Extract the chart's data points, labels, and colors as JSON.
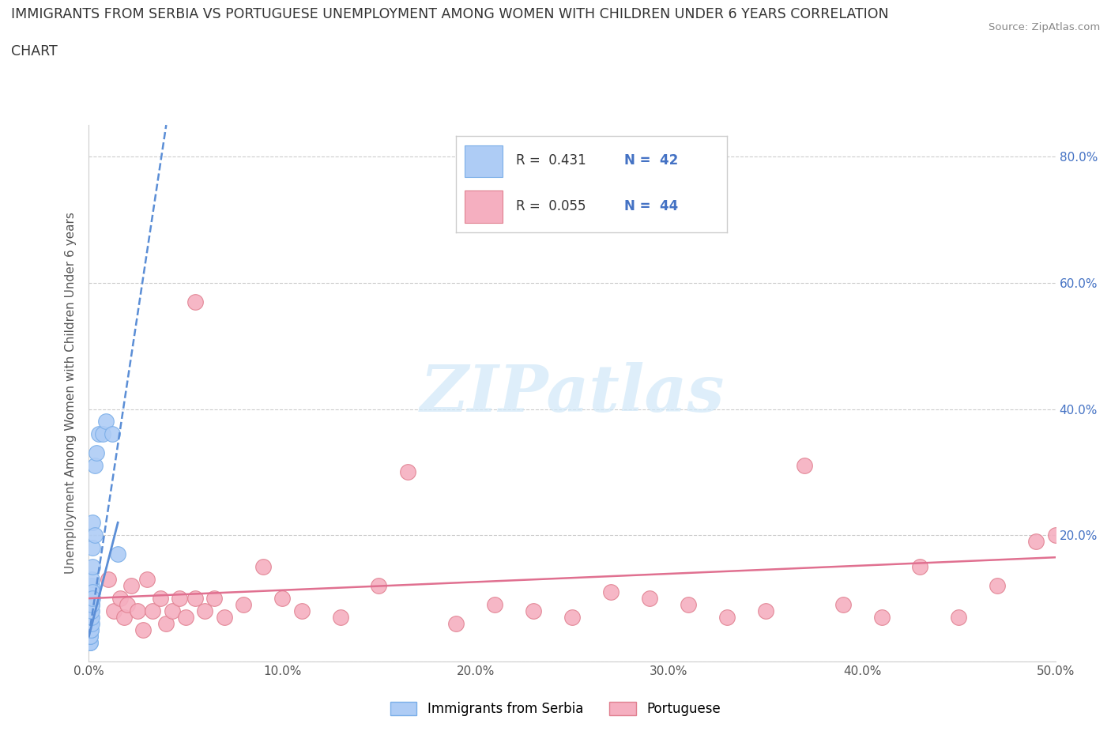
{
  "title_line1": "IMMIGRANTS FROM SERBIA VS PORTUGUESE UNEMPLOYMENT AMONG WOMEN WITH CHILDREN UNDER 6 YEARS CORRELATION",
  "title_line2": "CHART",
  "source": "Source: ZipAtlas.com",
  "ylabel": "Unemployment Among Women with Children Under 6 years",
  "xlim": [
    0.0,
    0.5
  ],
  "ylim": [
    0.0,
    0.85
  ],
  "xticks": [
    0.0,
    0.1,
    0.2,
    0.3,
    0.4,
    0.5
  ],
  "xtick_labels": [
    "0.0%",
    "10.0%",
    "20.0%",
    "30.0%",
    "40.0%",
    "50.0%"
  ],
  "yticks": [
    0.0,
    0.2,
    0.4,
    0.6,
    0.8
  ],
  "ytick_labels": [
    "",
    "20.0%",
    "40.0%",
    "60.0%",
    "80.0%"
  ],
  "serbia_color": "#aeccf5",
  "serbia_edge_color": "#7aaee8",
  "portuguese_color": "#f5afc0",
  "portuguese_edge_color": "#e08090",
  "serbia_R": 0.431,
  "serbia_N": 42,
  "portuguese_R": 0.055,
  "portuguese_N": 44,
  "legend_R_N_color": "#4472c4",
  "trend_blue": "#5b8ed6",
  "trend_pink": "#e07090",
  "watermark_color": "#d0e8f8",
  "serbia_label": "Immigrants from Serbia",
  "portuguese_label": "Portuguese",
  "serbia_x": [
    0.0002,
    0.0003,
    0.0003,
    0.0004,
    0.0004,
    0.0005,
    0.0005,
    0.0006,
    0.0006,
    0.0007,
    0.0007,
    0.0008,
    0.0008,
    0.0009,
    0.0009,
    0.001,
    0.001,
    0.0011,
    0.0011,
    0.0012,
    0.0012,
    0.0013,
    0.0013,
    0.0014,
    0.0014,
    0.0015,
    0.0015,
    0.0016,
    0.0016,
    0.0017,
    0.0018,
    0.002,
    0.002,
    0.002,
    0.003,
    0.003,
    0.004,
    0.005,
    0.007,
    0.009,
    0.012,
    0.015
  ],
  "serbia_y": [
    0.04,
    0.03,
    0.05,
    0.04,
    0.06,
    0.03,
    0.05,
    0.03,
    0.05,
    0.04,
    0.06,
    0.04,
    0.07,
    0.05,
    0.08,
    0.06,
    0.09,
    0.07,
    0.1,
    0.05,
    0.08,
    0.06,
    0.09,
    0.07,
    0.1,
    0.08,
    0.12,
    0.09,
    0.13,
    0.11,
    0.15,
    0.1,
    0.18,
    0.22,
    0.2,
    0.31,
    0.33,
    0.36,
    0.36,
    0.38,
    0.36,
    0.17
  ],
  "portuguese_x": [
    0.01,
    0.013,
    0.016,
    0.018,
    0.02,
    0.022,
    0.025,
    0.028,
    0.03,
    0.033,
    0.037,
    0.04,
    0.043,
    0.047,
    0.05,
    0.055,
    0.06,
    0.065,
    0.07,
    0.08,
    0.09,
    0.1,
    0.11,
    0.13,
    0.15,
    0.165,
    0.19,
    0.21,
    0.23,
    0.25,
    0.27,
    0.29,
    0.31,
    0.33,
    0.35,
    0.37,
    0.39,
    0.41,
    0.43,
    0.45,
    0.47,
    0.49,
    0.5,
    0.055
  ],
  "portuguese_y": [
    0.13,
    0.08,
    0.1,
    0.07,
    0.09,
    0.12,
    0.08,
    0.05,
    0.13,
    0.08,
    0.1,
    0.06,
    0.08,
    0.1,
    0.07,
    0.57,
    0.08,
    0.1,
    0.07,
    0.09,
    0.15,
    0.1,
    0.08,
    0.07,
    0.12,
    0.3,
    0.06,
    0.09,
    0.08,
    0.07,
    0.11,
    0.1,
    0.09,
    0.07,
    0.08,
    0.31,
    0.09,
    0.07,
    0.15,
    0.07,
    0.12,
    0.19,
    0.2,
    0.1
  ],
  "blue_trend_x0": 0.0,
  "blue_trend_y0": 0.04,
  "blue_trend_x1": 0.04,
  "blue_trend_y1": 0.85,
  "pink_trend_x0": 0.0,
  "pink_trend_y0": 0.1,
  "pink_trend_x1": 0.5,
  "pink_trend_y1": 0.165
}
